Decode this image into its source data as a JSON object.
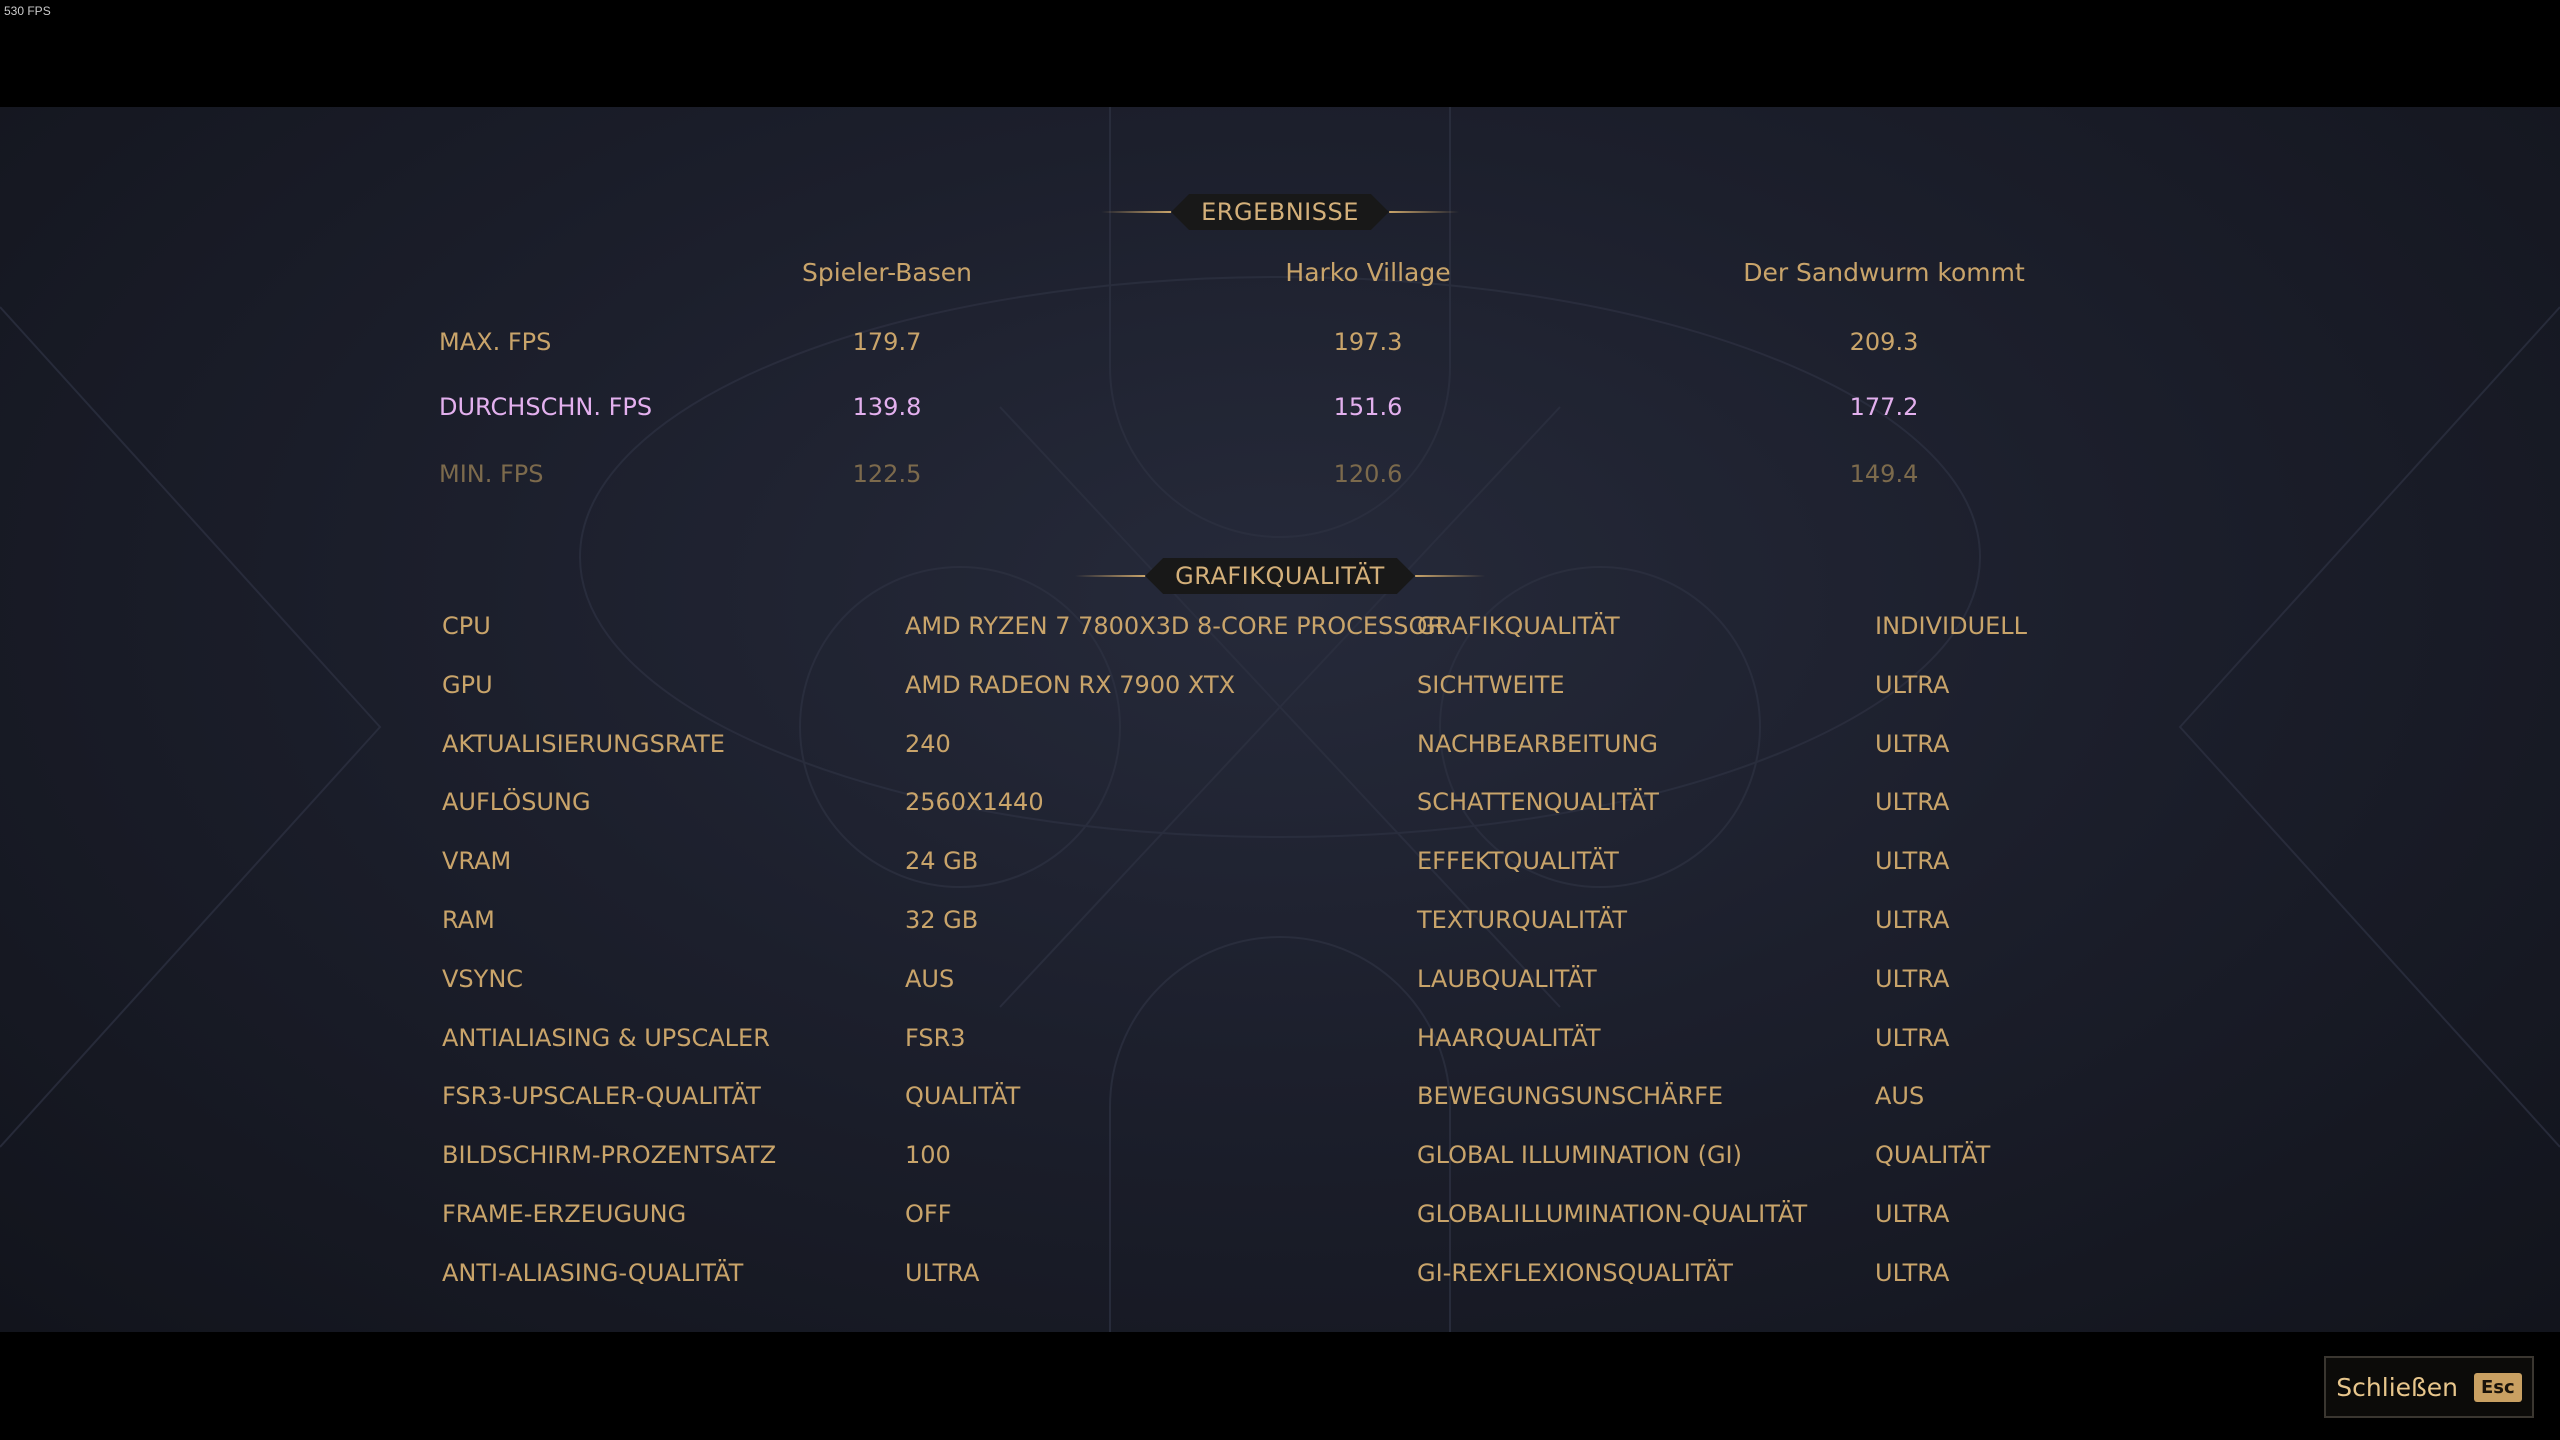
{
  "overlay_fps": "530 FPS",
  "results": {
    "title": "ERGEBNISSE",
    "columns": [
      "Spieler-Basen",
      "Harko Village",
      "Der Sandwurm kommt"
    ],
    "rows": [
      {
        "label": "MAX. FPS",
        "values": [
          "179.7",
          "197.3",
          "209.3"
        ]
      },
      {
        "label": "DURCHSCHN. FPS",
        "values": [
          "139.8",
          "151.6",
          "177.2"
        ]
      },
      {
        "label": "MIN. FPS",
        "values": [
          "122.5",
          "120.6",
          "149.4"
        ]
      }
    ]
  },
  "graphics": {
    "title": "GRAFIKQUALITÄT",
    "left": [
      {
        "label": "CPU",
        "value": "AMD RYZEN 7 7800X3D 8-CORE PROCESSOR"
      },
      {
        "label": "GPU",
        "value": "AMD RADEON RX 7900 XTX"
      },
      {
        "label": "AKTUALISIERUNGSRATE",
        "value": "240"
      },
      {
        "label": "AUFLÖSUNG",
        "value": "2560X1440"
      },
      {
        "label": "VRAM",
        "value": "24 GB"
      },
      {
        "label": "RAM",
        "value": "32 GB"
      },
      {
        "label": "VSYNC",
        "value": "AUS"
      },
      {
        "label": "ANTIALIASING & UPSCALER",
        "value": "FSR3"
      },
      {
        "label": "FSR3-UPSCALER-QUALITÄT",
        "value": "QUALITÄT"
      },
      {
        "label": "BILDSCHIRM-PROZENTSATZ",
        "value": "100"
      },
      {
        "label": "FRAME-ERZEUGUNG",
        "value": "OFF"
      },
      {
        "label": "ANTI-ALIASING-QUALITÄT",
        "value": "ULTRA"
      }
    ],
    "right": [
      {
        "label": "GRAFIKQUALITÄT",
        "value": "INDIVIDUELL"
      },
      {
        "label": "SICHTWEITE",
        "value": "ULTRA"
      },
      {
        "label": "NACHBEARBEITUNG",
        "value": "ULTRA"
      },
      {
        "label": "SCHATTENQUALITÄT",
        "value": "ULTRA"
      },
      {
        "label": "EFFEKTQUALITÄT",
        "value": "ULTRA"
      },
      {
        "label": "TEXTURQUALITÄT",
        "value": "ULTRA"
      },
      {
        "label": "LAUBQUALITÄT",
        "value": "ULTRA"
      },
      {
        "label": "HAARQUALITÄT",
        "value": "ULTRA"
      },
      {
        "label": "BEWEGUNGSUNSCHÄRFE",
        "value": "AUS"
      },
      {
        "label": "GLOBAL ILLUMINATION (GI)",
        "value": "QUALITÄT"
      },
      {
        "label": "GLOBALILLUMINATION-QUALITÄT",
        "value": "ULTRA"
      },
      {
        "label": "GI-REXFLEXIONSQUALITÄT",
        "value": "ULTRA"
      }
    ]
  },
  "close_button": {
    "label": "Schließen",
    "key": "Esc"
  },
  "colors": {
    "gold": "#c9a46a",
    "pink": "#e3b0ee",
    "dim": "#7c6a4c"
  }
}
